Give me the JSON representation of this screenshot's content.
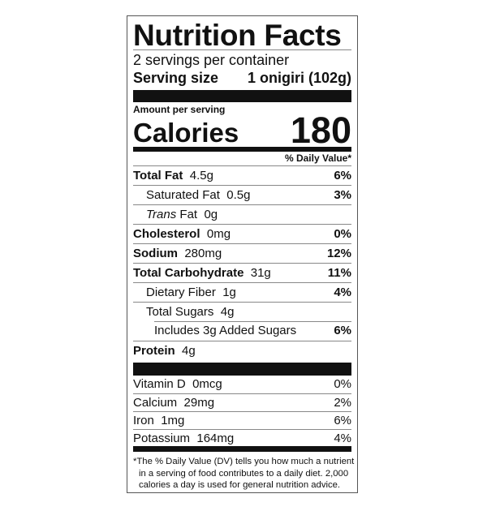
{
  "title": "Nutrition Facts",
  "servings_per_container": "2 servings per container",
  "serving_size_label": "Serving size",
  "serving_size_value": "1 onigiri (102g)",
  "amount_per_serving": "Amount per serving",
  "calories_label": "Calories",
  "calories_value": "180",
  "daily_value_header": "% Daily Value*",
  "nutrients": [
    {
      "name": "Total Fat",
      "amount": "4.5g",
      "dv": "6%"
    },
    {
      "name": "Saturated Fat",
      "amount": "0.5g",
      "dv": "3%"
    },
    {
      "name": "Trans",
      "name_suffix": "Fat",
      "amount": "0g",
      "dv": ""
    },
    {
      "name": "Cholesterol",
      "amount": "0mg",
      "dv": "0%"
    },
    {
      "name": "Sodium",
      "amount": "280mg",
      "dv": "12%"
    },
    {
      "name": "Total Carbohydrate",
      "amount": "31g",
      "dv": "11%"
    },
    {
      "name": "Dietary Fiber",
      "amount": "1g",
      "dv": "4%"
    },
    {
      "name": "Total Sugars",
      "amount": "4g",
      "dv": ""
    },
    {
      "name": "Includes 3g Added Sugars",
      "amount": "",
      "dv": "6%"
    },
    {
      "name": "Protein",
      "amount": "4g",
      "dv": ""
    }
  ],
  "vitamins": [
    {
      "name": "Vitamin D",
      "amount": "0mcg",
      "dv": "0%"
    },
    {
      "name": "Calcium",
      "amount": "29mg",
      "dv": "2%"
    },
    {
      "name": "Iron",
      "amount": "1mg",
      "dv": "6%"
    },
    {
      "name": "Potassium",
      "amount": "164mg",
      "dv": "4%"
    }
  ],
  "footnote": [
    "*The % Daily Value (DV) tells you how much a nutrient",
    "in a serving of food contributes to a daily diet. 2,000",
    "calories a day is used for general nutrition advice."
  ]
}
